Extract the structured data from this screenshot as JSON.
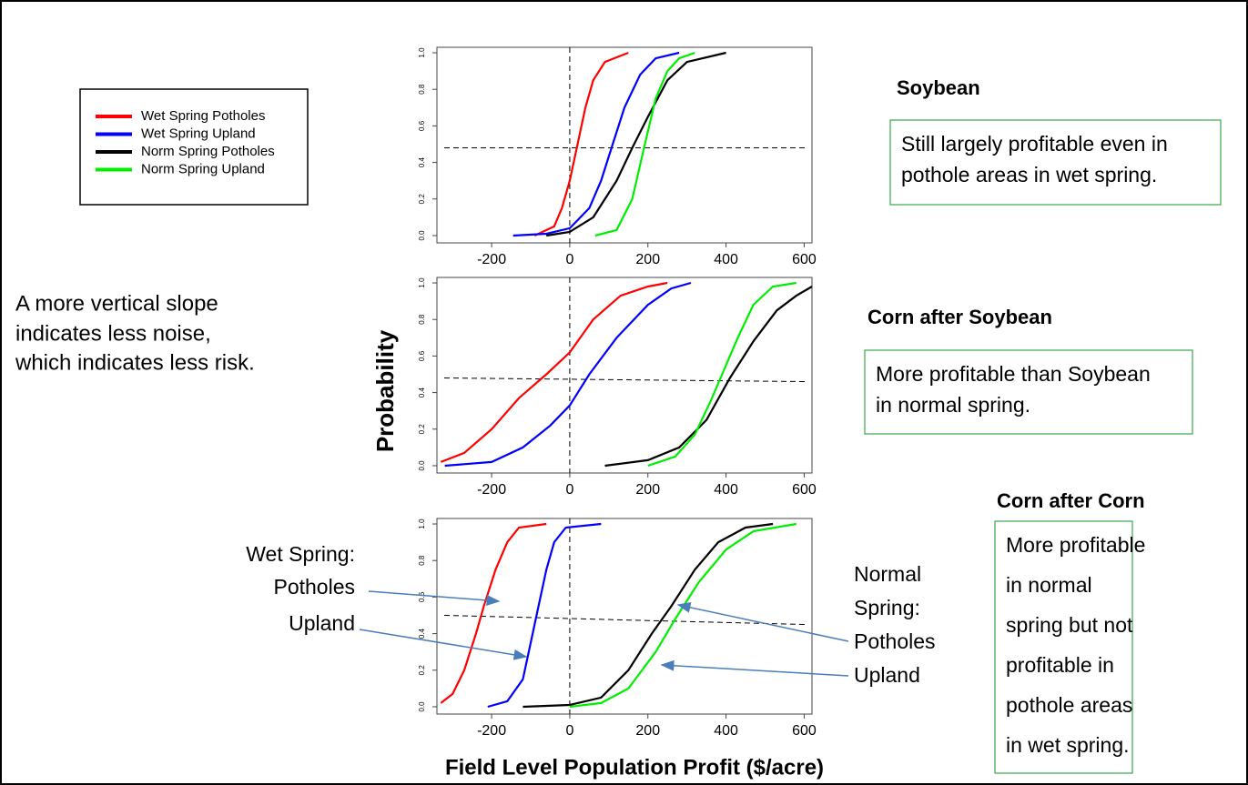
{
  "x_label": "Field Level Population Profit ($/acre)",
  "y_label": "Probability",
  "side_note": [
    "A more vertical slope",
    "indicates less noise,",
    "which indicates less risk."
  ],
  "chart_data": [
    {
      "type": "line",
      "title": "Soybean",
      "note": [
        "Still largely profitable even in",
        "pothole areas in wet spring."
      ],
      "xlim": [
        -340,
        620
      ],
      "ylim": [
        -0.04,
        1.03
      ],
      "xticks": [
        -200,
        {
          "value": 0,
          "label": "0",
          "color": "#e8221a"
        },
        200,
        400,
        600
      ],
      "yticks": [
        {
          "value": 0,
          "label": "0.0"
        },
        0.2,
        0.4,
        0.6,
        0.8,
        {
          "value": 1,
          "label": "1.0"
        }
      ],
      "vline": 0,
      "hline": [
        0.48,
        0.48
      ],
      "series": [
        {
          "name": "Wet Spring Potholes",
          "color": "#ff0000",
          "x": [
            -90,
            -40,
            -20,
            0,
            20,
            40,
            60,
            90,
            150
          ],
          "values": [
            0,
            0.05,
            0.15,
            0.3,
            0.5,
            0.7,
            0.85,
            0.95,
            1.0
          ]
        },
        {
          "name": "Wet Spring Upland",
          "color": "#0000ff",
          "x": [
            -145,
            -60,
            0,
            50,
            80,
            110,
            140,
            180,
            220,
            280
          ],
          "values": [
            0,
            0.01,
            0.04,
            0.15,
            0.3,
            0.5,
            0.7,
            0.88,
            0.97,
            1.0
          ]
        },
        {
          "name": "Norm Spring Potholes",
          "color": "#000000",
          "x": [
            -60,
            0,
            60,
            120,
            160,
            200,
            250,
            300,
            400
          ],
          "values": [
            0,
            0.02,
            0.1,
            0.3,
            0.48,
            0.65,
            0.85,
            0.95,
            1.0
          ]
        },
        {
          "name": "Norm Spring Upland",
          "color": "#00ee00",
          "x": [
            65,
            120,
            160,
            190,
            220,
            250,
            280,
            320
          ],
          "values": [
            0,
            0.03,
            0.2,
            0.48,
            0.75,
            0.9,
            0.97,
            1.0
          ]
        }
      ]
    },
    {
      "type": "line",
      "title": "Corn after Soybean",
      "note": [
        "More profitable than Soybean",
        "in normal spring."
      ],
      "xlim": [
        -340,
        620
      ],
      "ylim": [
        -0.04,
        1.03
      ],
      "xticks": [
        -200,
        {
          "value": 0,
          "label": "0",
          "color": "#e8221a"
        },
        200,
        400,
        600
      ],
      "yticks": [
        {
          "value": 0,
          "label": "0.0"
        },
        0.2,
        0.4,
        0.6,
        0.8,
        {
          "value": 1,
          "label": "1.0"
        }
      ],
      "vline": 0,
      "hline": [
        0.48,
        0.46
      ],
      "series": [
        {
          "color": "#ff0000",
          "x": [
            -330,
            -270,
            -200,
            -130,
            -60,
            0,
            60,
            130,
            200,
            250
          ],
          "values": [
            0.02,
            0.07,
            0.2,
            0.37,
            0.5,
            0.62,
            0.8,
            0.93,
            0.98,
            1.0
          ]
        },
        {
          "color": "#0000ff",
          "x": [
            -320,
            -200,
            -120,
            -50,
            0,
            50,
            120,
            200,
            260,
            310
          ],
          "values": [
            0,
            0.02,
            0.1,
            0.22,
            0.33,
            0.5,
            0.7,
            0.88,
            0.97,
            1.0
          ]
        },
        {
          "color": "#000000",
          "x": [
            90,
            200,
            280,
            350,
            410,
            470,
            530,
            580,
            620
          ],
          "values": [
            0,
            0.03,
            0.1,
            0.25,
            0.48,
            0.68,
            0.85,
            0.93,
            0.98
          ]
        },
        {
          "color": "#00ee00",
          "x": [
            200,
            270,
            320,
            360,
            390,
            430,
            470,
            520,
            580
          ],
          "values": [
            0,
            0.05,
            0.17,
            0.35,
            0.5,
            0.7,
            0.88,
            0.98,
            1.0
          ]
        }
      ]
    },
    {
      "type": "line",
      "title": "Corn after Corn",
      "note": [
        "More profitable",
        "in normal",
        "spring but not",
        "profitable in",
        "pothole areas",
        "in wet spring."
      ],
      "callouts_left": [
        "Wet Spring:",
        "Potholes",
        "Upland"
      ],
      "callouts_right": [
        "Normal",
        "Spring:",
        "Potholes",
        "Upland"
      ],
      "xlim": [
        -340,
        620
      ],
      "ylim": [
        -0.04,
        1.03
      ],
      "xticks": [
        -200,
        {
          "value": 0,
          "label": "0",
          "color": "#e8221a"
        },
        200,
        400,
        600
      ],
      "yticks": [
        {
          "value": 0,
          "label": "0.0"
        },
        0.2,
        0.4,
        0.6,
        0.8,
        {
          "value": 1,
          "label": "1.0"
        }
      ],
      "vline": 0,
      "hline": [
        0.5,
        0.45
      ],
      "series": [
        {
          "color": "#ff0000",
          "x": [
            -330,
            -300,
            -270,
            -240,
            -220,
            -190,
            -160,
            -130,
            -60
          ],
          "values": [
            0.02,
            0.07,
            0.2,
            0.4,
            0.55,
            0.75,
            0.9,
            0.98,
            1.0
          ]
        },
        {
          "color": "#0000ff",
          "x": [
            -210,
            -160,
            -120,
            -100,
            -80,
            -60,
            -40,
            -10,
            80
          ],
          "values": [
            0,
            0.03,
            0.15,
            0.35,
            0.55,
            0.75,
            0.9,
            0.98,
            1.0
          ]
        },
        {
          "color": "#000000",
          "x": [
            -120,
            0,
            80,
            150,
            210,
            260,
            320,
            380,
            450,
            520
          ],
          "values": [
            0,
            0.01,
            0.05,
            0.2,
            0.4,
            0.55,
            0.75,
            0.9,
            0.98,
            1.0
          ]
        },
        {
          "color": "#00ee00",
          "x": [
            0,
            80,
            150,
            220,
            270,
            330,
            400,
            470,
            580
          ],
          "values": [
            0,
            0.02,
            0.1,
            0.3,
            0.48,
            0.68,
            0.86,
            0.96,
            1.0
          ]
        }
      ]
    }
  ]
}
